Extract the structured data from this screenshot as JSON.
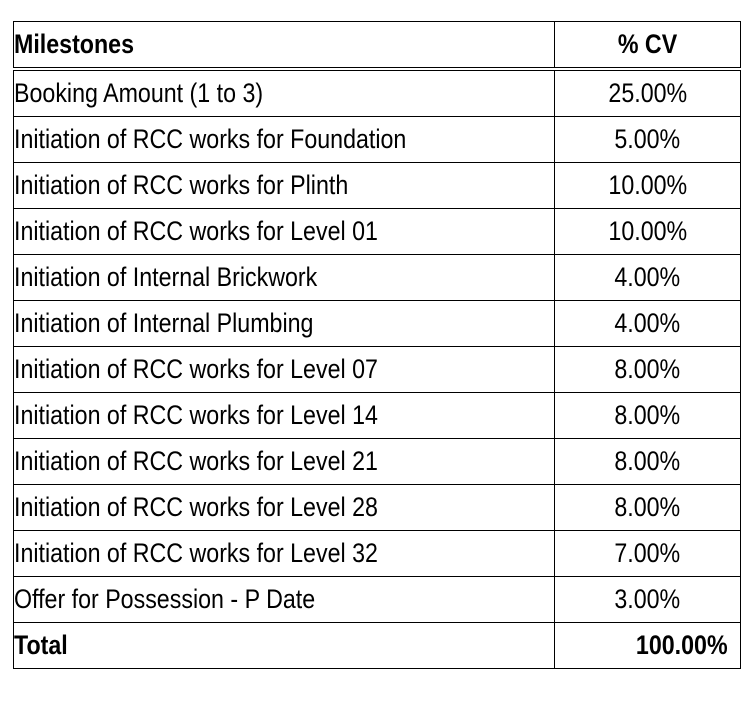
{
  "table": {
    "headers": {
      "milestones": "Milestones",
      "percent": "% CV"
    },
    "rows": [
      {
        "milestone": "Booking Amount (1 to 3)",
        "percent": "25.00%"
      },
      {
        "milestone": "Initiation of RCC works for Foundation",
        "percent": "5.00%"
      },
      {
        "milestone": "Initiation of RCC works for Plinth",
        "percent": "10.00%"
      },
      {
        "milestone": "Initiation of RCC works for Level 01",
        "percent": "10.00%"
      },
      {
        "milestone": "Initiation of Internal Brickwork",
        "percent": "4.00%"
      },
      {
        "milestone": "Initiation of Internal Plumbing",
        "percent": "4.00%"
      },
      {
        "milestone": "Initiation of RCC works for Level 07",
        "percent": "8.00%"
      },
      {
        "milestone": "Initiation of RCC works for Level 14",
        "percent": "8.00%"
      },
      {
        "milestone": "Initiation of RCC works for Level 21",
        "percent": "8.00%"
      },
      {
        "milestone": "Initiation of RCC works for Level 28",
        "percent": "8.00%"
      },
      {
        "milestone": "Initiation of RCC works for Level 32",
        "percent": "7.00%"
      },
      {
        "milestone": "Offer for Possession - P Date",
        "percent": "3.00%"
      }
    ],
    "total": {
      "label": "Total",
      "percent": "100.00%"
    }
  }
}
